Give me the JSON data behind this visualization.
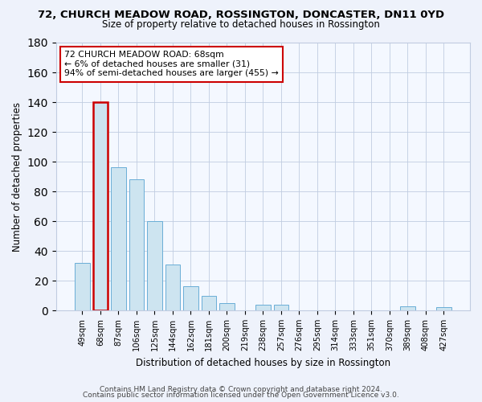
{
  "title": "72, CHURCH MEADOW ROAD, ROSSINGTON, DONCASTER, DN11 0YD",
  "subtitle": "Size of property relative to detached houses in Rossington",
  "xlabel": "Distribution of detached houses by size in Rossington",
  "ylabel": "Number of detached properties",
  "bar_labels": [
    "49sqm",
    "68sqm",
    "87sqm",
    "106sqm",
    "125sqm",
    "144sqm",
    "162sqm",
    "181sqm",
    "200sqm",
    "219sqm",
    "238sqm",
    "257sqm",
    "276sqm",
    "295sqm",
    "314sqm",
    "333sqm",
    "351sqm",
    "370sqm",
    "389sqm",
    "408sqm",
    "427sqm"
  ],
  "bar_values": [
    32,
    140,
    96,
    88,
    60,
    31,
    16,
    10,
    5,
    0,
    4,
    4,
    0,
    0,
    0,
    0,
    0,
    0,
    3,
    0,
    2
  ],
  "bar_facecolor": "#cde4f0",
  "bar_edgecolor": "#6aaed6",
  "highlight_bar_index": 1,
  "highlight_line_color": "#cc0000",
  "ylim": [
    0,
    180
  ],
  "yticks": [
    0,
    20,
    40,
    60,
    80,
    100,
    120,
    140,
    160,
    180
  ],
  "annotation_line1": "72 CHURCH MEADOW ROAD: 68sqm",
  "annotation_line2": "← 6% of detached houses are smaller (31)",
  "annotation_line3": "94% of semi-detached houses are larger (455) →",
  "footer_line1": "Contains HM Land Registry data © Crown copyright and database right 2024.",
  "footer_line2": "Contains public sector information licensed under the Open Government Licence v3.0.",
  "background_color": "#eef2fb",
  "plot_background_color": "#f4f8ff",
  "grid_color": "#c0cce0",
  "title_fontsize": 9.5,
  "subtitle_fontsize": 8.5,
  "tick_fontsize": 7.2,
  "ylabel_fontsize": 8.5,
  "xlabel_fontsize": 8.5,
  "annotation_fontsize": 7.8,
  "footer_fontsize": 6.5
}
